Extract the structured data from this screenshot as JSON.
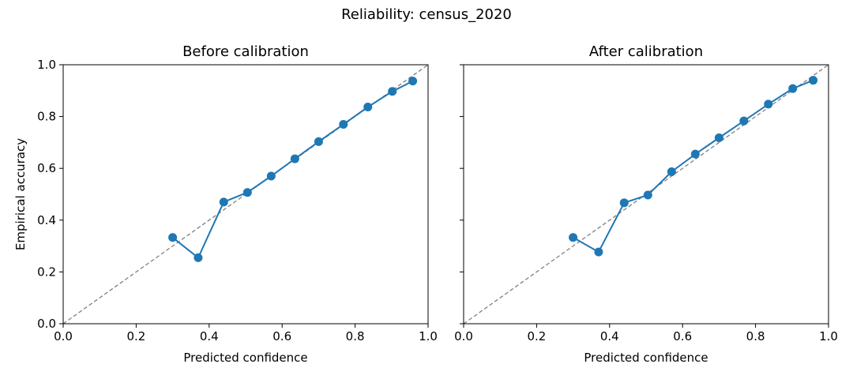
{
  "suptitle": "Reliability: census_2020",
  "axis": {
    "xlabel": "Predicted confidence",
    "ylabel": "Empirical accuracy",
    "ticks": [
      "0.0",
      "0.2",
      "0.4",
      "0.6",
      "0.8",
      "1.0"
    ]
  },
  "colors": {
    "series": "#1f77b4",
    "diagonal": "#808080"
  },
  "chart_data": [
    {
      "type": "line",
      "title": "Before calibration",
      "xlabel": "Predicted confidence",
      "ylabel": "Empirical accuracy",
      "xlim": [
        0,
        1
      ],
      "ylim": [
        0,
        1
      ],
      "reference_line": "y = x (dashed)",
      "series": [
        {
          "x": [
            0.3,
            0.37,
            0.44,
            0.505,
            0.57,
            0.635,
            0.7,
            0.768,
            0.835,
            0.902,
            0.958
          ],
          "y": [
            0.333,
            0.255,
            0.47,
            0.507,
            0.57,
            0.637,
            0.703,
            0.77,
            0.837,
            0.897,
            0.937
          ]
        }
      ]
    },
    {
      "type": "line",
      "title": "After calibration",
      "xlabel": "Predicted confidence",
      "xlim": [
        0,
        1
      ],
      "ylim": [
        0,
        1
      ],
      "reference_line": "y = x (dashed)",
      "series": [
        {
          "x": [
            0.3,
            0.37,
            0.44,
            0.505,
            0.57,
            0.635,
            0.7,
            0.768,
            0.835,
            0.902,
            0.958
          ],
          "y": [
            0.333,
            0.277,
            0.467,
            0.497,
            0.587,
            0.655,
            0.718,
            0.783,
            0.848,
            0.908,
            0.94
          ]
        }
      ]
    }
  ]
}
